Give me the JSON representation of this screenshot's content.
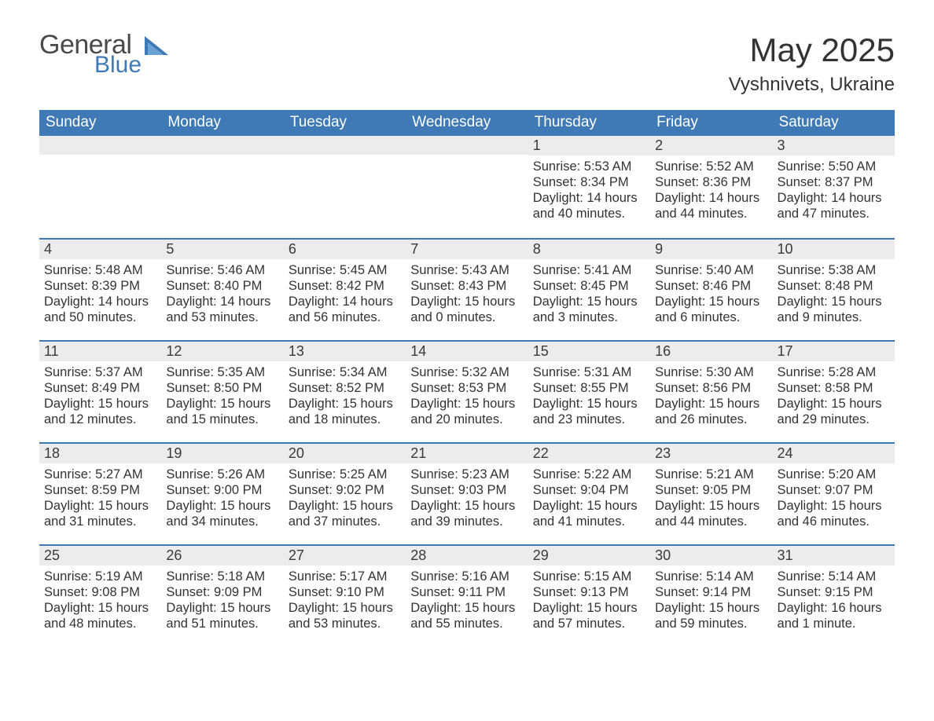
{
  "meta": {
    "type": "calendar-table",
    "columns": 7,
    "rows": 5,
    "background_color": "#ffffff",
    "header_bg": "#3f79b6",
    "header_text_color": "#ffffff",
    "daynum_bg": "#ececec",
    "row_divider_color": "#3f79b6",
    "body_text_color": "#333333",
    "title_fontsize_pt": 32,
    "location_fontsize_pt": 18,
    "header_fontsize_pt": 14,
    "daynum_fontsize_pt": 14,
    "body_fontsize_pt": 12
  },
  "logo": {
    "line1": "General",
    "line2": "Blue",
    "text_color": "#4a4a4a",
    "accent_color": "#3f79b6"
  },
  "title": "May 2025",
  "location": "Vyshnivets, Ukraine",
  "weekdays": [
    "Sunday",
    "Monday",
    "Tuesday",
    "Wednesday",
    "Thursday",
    "Friday",
    "Saturday"
  ],
  "weeks": [
    [
      {
        "blank": true
      },
      {
        "blank": true
      },
      {
        "blank": true
      },
      {
        "blank": true
      },
      {
        "day": "1",
        "sunrise": "Sunrise: 5:53 AM",
        "sunset": "Sunset: 8:34 PM",
        "dl1": "Daylight: 14 hours",
        "dl2": "and 40 minutes."
      },
      {
        "day": "2",
        "sunrise": "Sunrise: 5:52 AM",
        "sunset": "Sunset: 8:36 PM",
        "dl1": "Daylight: 14 hours",
        "dl2": "and 44 minutes."
      },
      {
        "day": "3",
        "sunrise": "Sunrise: 5:50 AM",
        "sunset": "Sunset: 8:37 PM",
        "dl1": "Daylight: 14 hours",
        "dl2": "and 47 minutes."
      }
    ],
    [
      {
        "day": "4",
        "sunrise": "Sunrise: 5:48 AM",
        "sunset": "Sunset: 8:39 PM",
        "dl1": "Daylight: 14 hours",
        "dl2": "and 50 minutes."
      },
      {
        "day": "5",
        "sunrise": "Sunrise: 5:46 AM",
        "sunset": "Sunset: 8:40 PM",
        "dl1": "Daylight: 14 hours",
        "dl2": "and 53 minutes."
      },
      {
        "day": "6",
        "sunrise": "Sunrise: 5:45 AM",
        "sunset": "Sunset: 8:42 PM",
        "dl1": "Daylight: 14 hours",
        "dl2": "and 56 minutes."
      },
      {
        "day": "7",
        "sunrise": "Sunrise: 5:43 AM",
        "sunset": "Sunset: 8:43 PM",
        "dl1": "Daylight: 15 hours",
        "dl2": "and 0 minutes."
      },
      {
        "day": "8",
        "sunrise": "Sunrise: 5:41 AM",
        "sunset": "Sunset: 8:45 PM",
        "dl1": "Daylight: 15 hours",
        "dl2": "and 3 minutes."
      },
      {
        "day": "9",
        "sunrise": "Sunrise: 5:40 AM",
        "sunset": "Sunset: 8:46 PM",
        "dl1": "Daylight: 15 hours",
        "dl2": "and 6 minutes."
      },
      {
        "day": "10",
        "sunrise": "Sunrise: 5:38 AM",
        "sunset": "Sunset: 8:48 PM",
        "dl1": "Daylight: 15 hours",
        "dl2": "and 9 minutes."
      }
    ],
    [
      {
        "day": "11",
        "sunrise": "Sunrise: 5:37 AM",
        "sunset": "Sunset: 8:49 PM",
        "dl1": "Daylight: 15 hours",
        "dl2": "and 12 minutes."
      },
      {
        "day": "12",
        "sunrise": "Sunrise: 5:35 AM",
        "sunset": "Sunset: 8:50 PM",
        "dl1": "Daylight: 15 hours",
        "dl2": "and 15 minutes."
      },
      {
        "day": "13",
        "sunrise": "Sunrise: 5:34 AM",
        "sunset": "Sunset: 8:52 PM",
        "dl1": "Daylight: 15 hours",
        "dl2": "and 18 minutes."
      },
      {
        "day": "14",
        "sunrise": "Sunrise: 5:32 AM",
        "sunset": "Sunset: 8:53 PM",
        "dl1": "Daylight: 15 hours",
        "dl2": "and 20 minutes."
      },
      {
        "day": "15",
        "sunrise": "Sunrise: 5:31 AM",
        "sunset": "Sunset: 8:55 PM",
        "dl1": "Daylight: 15 hours",
        "dl2": "and 23 minutes."
      },
      {
        "day": "16",
        "sunrise": "Sunrise: 5:30 AM",
        "sunset": "Sunset: 8:56 PM",
        "dl1": "Daylight: 15 hours",
        "dl2": "and 26 minutes."
      },
      {
        "day": "17",
        "sunrise": "Sunrise: 5:28 AM",
        "sunset": "Sunset: 8:58 PM",
        "dl1": "Daylight: 15 hours",
        "dl2": "and 29 minutes."
      }
    ],
    [
      {
        "day": "18",
        "sunrise": "Sunrise: 5:27 AM",
        "sunset": "Sunset: 8:59 PM",
        "dl1": "Daylight: 15 hours",
        "dl2": "and 31 minutes."
      },
      {
        "day": "19",
        "sunrise": "Sunrise: 5:26 AM",
        "sunset": "Sunset: 9:00 PM",
        "dl1": "Daylight: 15 hours",
        "dl2": "and 34 minutes."
      },
      {
        "day": "20",
        "sunrise": "Sunrise: 5:25 AM",
        "sunset": "Sunset: 9:02 PM",
        "dl1": "Daylight: 15 hours",
        "dl2": "and 37 minutes."
      },
      {
        "day": "21",
        "sunrise": "Sunrise: 5:23 AM",
        "sunset": "Sunset: 9:03 PM",
        "dl1": "Daylight: 15 hours",
        "dl2": "and 39 minutes."
      },
      {
        "day": "22",
        "sunrise": "Sunrise: 5:22 AM",
        "sunset": "Sunset: 9:04 PM",
        "dl1": "Daylight: 15 hours",
        "dl2": "and 41 minutes."
      },
      {
        "day": "23",
        "sunrise": "Sunrise: 5:21 AM",
        "sunset": "Sunset: 9:05 PM",
        "dl1": "Daylight: 15 hours",
        "dl2": "and 44 minutes."
      },
      {
        "day": "24",
        "sunrise": "Sunrise: 5:20 AM",
        "sunset": "Sunset: 9:07 PM",
        "dl1": "Daylight: 15 hours",
        "dl2": "and 46 minutes."
      }
    ],
    [
      {
        "day": "25",
        "sunrise": "Sunrise: 5:19 AM",
        "sunset": "Sunset: 9:08 PM",
        "dl1": "Daylight: 15 hours",
        "dl2": "and 48 minutes."
      },
      {
        "day": "26",
        "sunrise": "Sunrise: 5:18 AM",
        "sunset": "Sunset: 9:09 PM",
        "dl1": "Daylight: 15 hours",
        "dl2": "and 51 minutes."
      },
      {
        "day": "27",
        "sunrise": "Sunrise: 5:17 AM",
        "sunset": "Sunset: 9:10 PM",
        "dl1": "Daylight: 15 hours",
        "dl2": "and 53 minutes."
      },
      {
        "day": "28",
        "sunrise": "Sunrise: 5:16 AM",
        "sunset": "Sunset: 9:11 PM",
        "dl1": "Daylight: 15 hours",
        "dl2": "and 55 minutes."
      },
      {
        "day": "29",
        "sunrise": "Sunrise: 5:15 AM",
        "sunset": "Sunset: 9:13 PM",
        "dl1": "Daylight: 15 hours",
        "dl2": "and 57 minutes."
      },
      {
        "day": "30",
        "sunrise": "Sunrise: 5:14 AM",
        "sunset": "Sunset: 9:14 PM",
        "dl1": "Daylight: 15 hours",
        "dl2": "and 59 minutes."
      },
      {
        "day": "31",
        "sunrise": "Sunrise: 5:14 AM",
        "sunset": "Sunset: 9:15 PM",
        "dl1": "Daylight: 16 hours",
        "dl2": "and 1 minute."
      }
    ]
  ]
}
